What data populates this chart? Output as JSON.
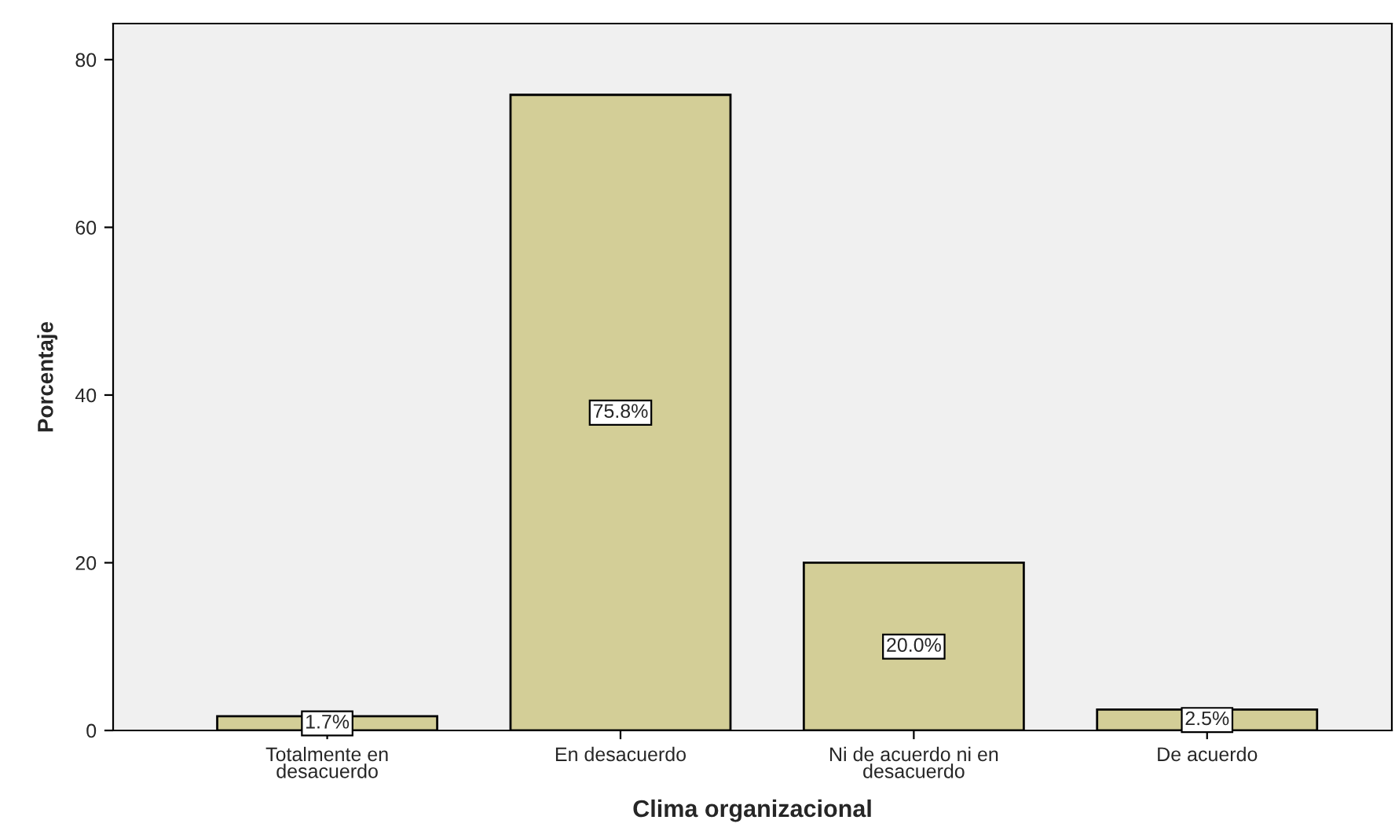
{
  "chart_data": {
    "type": "bar",
    "xlabel": "Clima organizacional",
    "ylabel": "Porcentaje",
    "categories": [
      "Totalmente en\ndesacuerdo",
      "En desacuerdo",
      "Ni de acuerdo ni en\ndesacuerdo",
      "De acuerdo"
    ],
    "values": [
      1.7,
      75.8,
      20.0,
      2.5
    ],
    "value_labels": [
      "1.7%",
      "75.8%",
      "20.0%",
      "2.5%"
    ],
    "color": "#d3ce97",
    "ylim": [
      0,
      84.3
    ],
    "yticks": [
      0,
      20,
      40,
      60,
      80
    ],
    "grid": false,
    "legend": false
  }
}
